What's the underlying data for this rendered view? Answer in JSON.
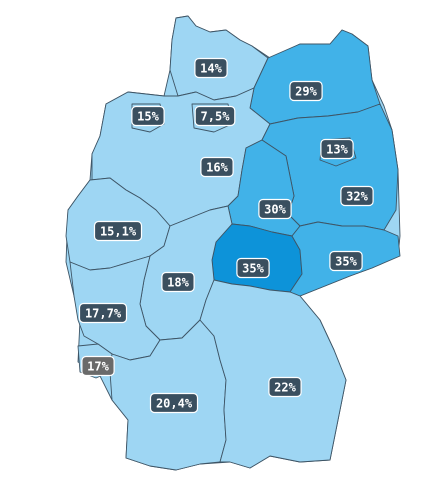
{
  "map": {
    "regions": [
      {
        "id": "schleswig-holstein",
        "label": "14%",
        "value": 14,
        "shade": "light"
      },
      {
        "id": "mecklenburg-vorpommern",
        "label": "29%",
        "value": 29,
        "shade": "mid"
      },
      {
        "id": "bremen",
        "label": "15%",
        "value": 15,
        "shade": "light"
      },
      {
        "id": "hamburg",
        "label": "7,5%",
        "value": 7.5,
        "shade": "light"
      },
      {
        "id": "berlin",
        "label": "13%",
        "value": 13,
        "shade": "mid"
      },
      {
        "id": "niedersachsen",
        "label": "16%",
        "value": 16,
        "shade": "light"
      },
      {
        "id": "brandenburg",
        "label": "32%",
        "value": 32,
        "shade": "mid"
      },
      {
        "id": "sachsen-anhalt",
        "label": "30%",
        "value": 30,
        "shade": "mid"
      },
      {
        "id": "nordrhein-westfalen",
        "label": "15,1%",
        "value": 15.1,
        "shade": "light"
      },
      {
        "id": "thueringen",
        "label": "35%",
        "value": 35,
        "shade": "dark"
      },
      {
        "id": "sachsen",
        "label": "35%",
        "value": 35,
        "shade": "mid"
      },
      {
        "id": "hessen",
        "label": "18%",
        "value": 18,
        "shade": "light"
      },
      {
        "id": "rheinland-pfalz",
        "label": "17,7%",
        "value": 17.7,
        "shade": "light"
      },
      {
        "id": "saarland",
        "label": "17%",
        "value": 17,
        "shade": "gray"
      },
      {
        "id": "bayern",
        "label": "22%",
        "value": 22,
        "shade": "light"
      },
      {
        "id": "baden-wuerttemberg",
        "label": "20,4%",
        "value": 20.4,
        "shade": "light"
      }
    ],
    "colors": {
      "light": "#9ed6f3",
      "mid": "#41b2e8",
      "dark": "#0d93d9",
      "border": "#3e5566",
      "badge": "#3a4f5f",
      "badge_gray": "#6a6a6a"
    }
  }
}
